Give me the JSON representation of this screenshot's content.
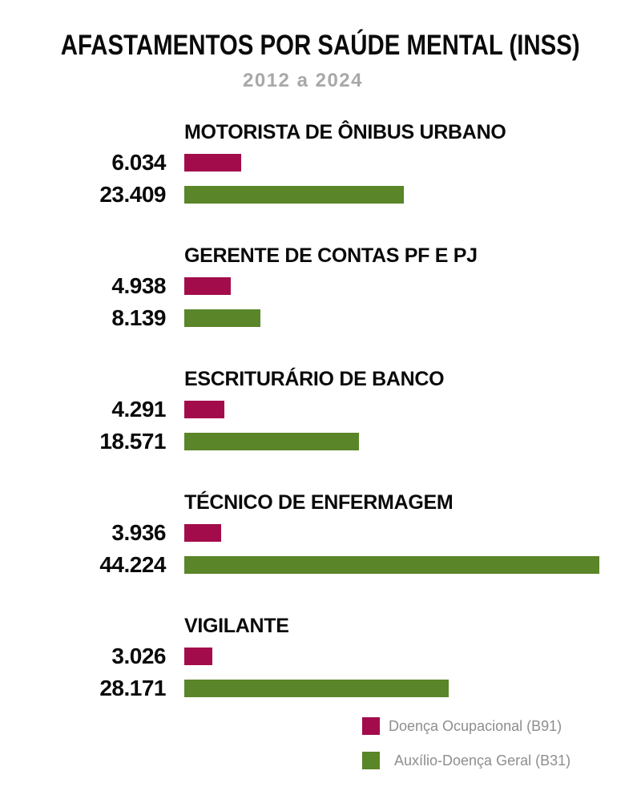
{
  "header": {
    "title": "AFASTAMENTOS POR SAÚDE MENTAL (INSS)",
    "subtitle": "2012 a 2024"
  },
  "chart_data": {
    "type": "bar",
    "orientation": "horizontal",
    "title": "AFASTAMENTOS POR SAÚDE MENTAL (INSS)",
    "subtitle": "2012 a 2024",
    "categories": [
      "MOTORISTA DE ÔNIBUS URBANO",
      "GERENTE DE CONTAS PF E PJ",
      "ESCRITURÁRIO DE BANCO",
      "TÉCNICO DE ENFERMAGEM",
      "VIGILANTE"
    ],
    "series": [
      {
        "name": "Doença Ocupacional (B91)",
        "color": "#a30c4b",
        "values": [
          6034,
          4938,
          4291,
          3936,
          3026
        ],
        "labels": [
          "6.034",
          "4.938",
          "4.291",
          "3.936",
          "3.026"
        ]
      },
      {
        "name": "Auxílio-Doença Geral (B31)",
        "color": "#5a8528",
        "values": [
          23409,
          8139,
          18571,
          44224,
          28171
        ],
        "labels": [
          "23.409",
          "8.139",
          "18.571",
          "44.224",
          "28.171"
        ]
      }
    ],
    "xlim": [
      0,
      44224
    ],
    "grid": false,
    "legend_position": "bottom-right",
    "value_labels_position": "left",
    "colors": {
      "background": "#ffffff",
      "title_text": "#0a0a0a",
      "subtitle_text": "#a8a8a8",
      "legend_text": "#8e8e8e"
    }
  }
}
